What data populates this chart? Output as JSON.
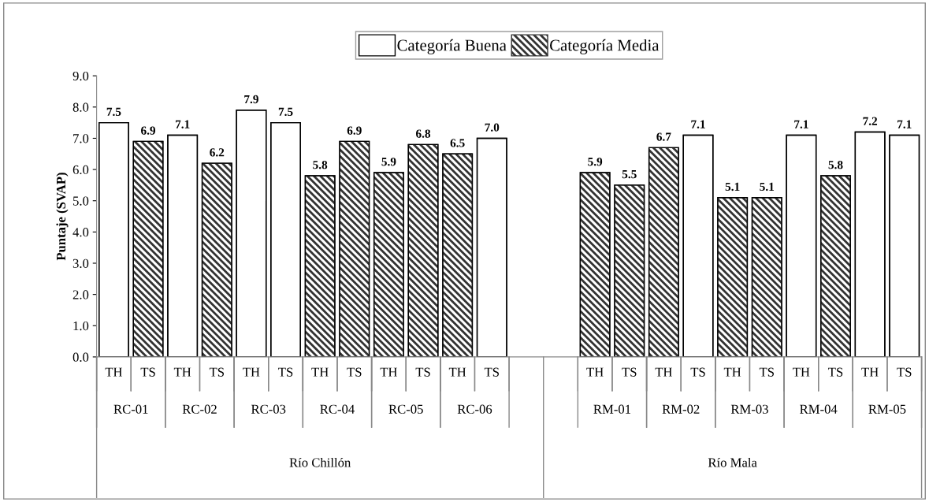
{
  "chart_data": {
    "type": "bar",
    "ylabel": "Puntaje (SVAP)",
    "categories": [
      "TH",
      "TS",
      "TH",
      "TS",
      "TH",
      "TS",
      "TH",
      "TS",
      "TH",
      "TS",
      "TH",
      "TS",
      null,
      null,
      "TH",
      "TS",
      "TH",
      "TS",
      "TH",
      "TS",
      "TH",
      "TS",
      "TH",
      "TS"
    ],
    "series": [
      {
        "name": "Categoría Buena",
        "color": "#ffffff",
        "values": [
          7.5,
          null,
          7.1,
          null,
          7.9,
          7.5,
          null,
          null,
          null,
          null,
          null,
          7.0,
          null,
          null,
          null,
          null,
          null,
          7.1,
          null,
          null,
          7.1,
          null,
          7.2,
          7.1
        ],
        "value_labels": [
          "7.5",
          null,
          "7.1",
          null,
          "7.9",
          "7.5",
          null,
          null,
          null,
          null,
          null,
          "7.0",
          null,
          null,
          null,
          null,
          null,
          "7.1",
          null,
          null,
          "7.1",
          null,
          "7.2",
          "7.1"
        ]
      },
      {
        "name": "Categoría Media",
        "color": "#333333",
        "values": [
          null,
          6.9,
          null,
          6.2,
          null,
          null,
          5.8,
          6.9,
          5.9,
          6.8,
          6.5,
          null,
          null,
          null,
          5.9,
          5.5,
          6.7,
          null,
          5.1,
          5.1,
          null,
          5.8,
          null,
          null
        ],
        "value_labels": [
          null,
          "6.9",
          null,
          "6.2",
          null,
          null,
          "5.8",
          "6.9",
          "5.9",
          "6.8",
          "6.5",
          null,
          null,
          null,
          "5.9",
          "5.5",
          "6.7",
          null,
          "5.1",
          "5.1",
          null,
          "5.8",
          null,
          null
        ]
      }
    ],
    "ylim": [
      0,
      9
    ],
    "yticks": [
      {
        "value": 0,
        "label": "0.0"
      },
      {
        "value": 1,
        "label": "1.0"
      },
      {
        "value": 2,
        "label": "2.0"
      },
      {
        "value": 3,
        "label": "3.0"
      },
      {
        "value": 4,
        "label": "4.0"
      },
      {
        "value": 5,
        "label": "5.0"
      },
      {
        "value": 6,
        "label": "6.0"
      },
      {
        "value": 7,
        "label": "7.0"
      },
      {
        "value": 8,
        "label": "8.0"
      },
      {
        "value": 9,
        "label": "9.0"
      }
    ],
    "annotations": [
      "RC-01",
      "RC-02",
      "RC-03",
      "RC-04",
      "RC-05",
      "RC-06",
      "RM-01",
      "RM-02",
      "RM-03",
      "RM-04",
      "RM-05",
      "Río Chillón",
      "Río Mala"
    ],
    "legend": "top",
    "grid": false
  }
}
